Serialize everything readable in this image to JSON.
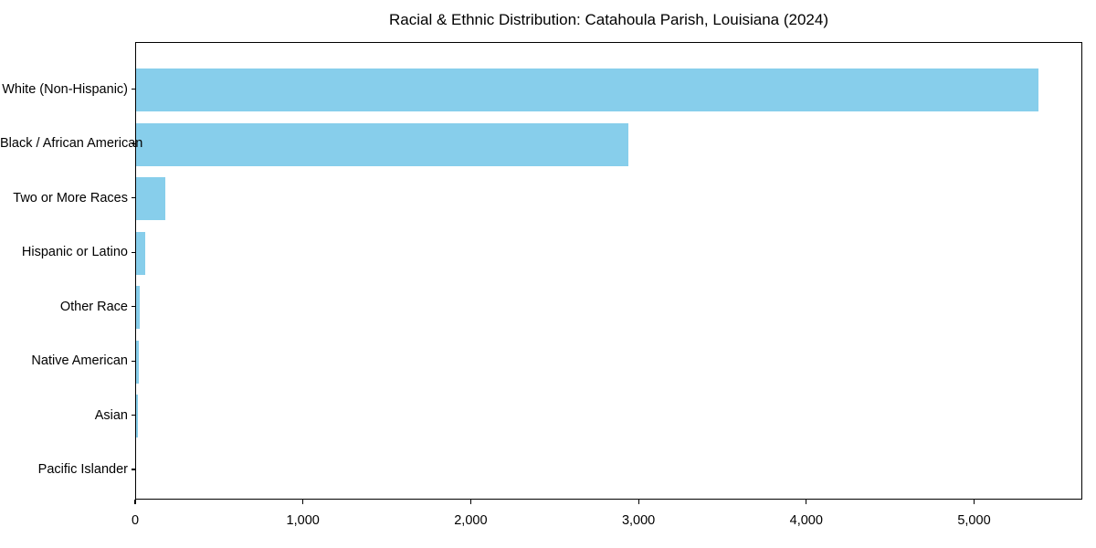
{
  "chart_data": {
    "type": "bar",
    "orientation": "horizontal",
    "title": "Racial & Ethnic Distribution: Catahoula Parish, Louisiana (2024)",
    "categories": [
      "White (Non-Hispanic)",
      "Black / African American",
      "Two or More Races",
      "Hispanic or Latino",
      "Other Race",
      "Native American",
      "Asian",
      "Pacific Islander"
    ],
    "values": [
      5377,
      2932,
      175,
      55,
      22,
      15,
      12,
      0
    ],
    "xlabel": "",
    "ylabel": "",
    "xlim": [
      0,
      5645
    ],
    "xticks": [
      0,
      1000,
      2000,
      3000,
      4000,
      5000
    ],
    "xtick_labels": [
      "0",
      "1,000",
      "2,000",
      "3,000",
      "4,000",
      "5,000"
    ],
    "bar_color": "#87CEEB",
    "axis_color": "#000000",
    "background_color": "#ffffff",
    "grid": false,
    "legend_position": "none"
  }
}
